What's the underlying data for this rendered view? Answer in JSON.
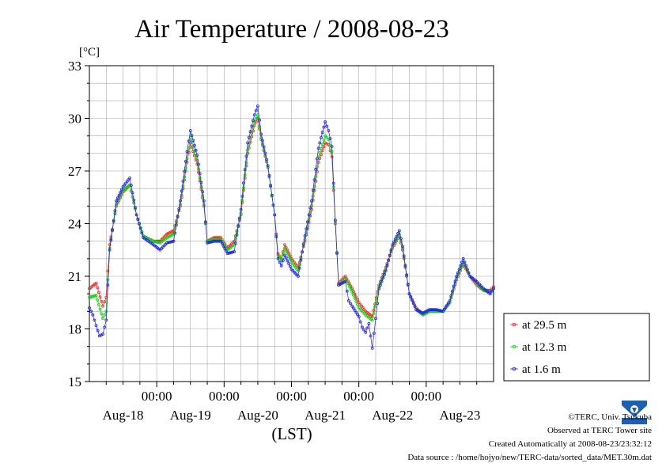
{
  "chart_data": {
    "type": "line",
    "title": "Air Temperature / 2008-08-23",
    "unit_label": "[°C]",
    "xlabel": "(LST)",
    "ylim": [
      15,
      33
    ],
    "yticks": [
      "15",
      "18",
      "21",
      "24",
      "27",
      "30",
      "33"
    ],
    "xlim_days": [
      0,
      6
    ],
    "time_ticks": [
      {
        "day": 1,
        "label": "00:00"
      },
      {
        "day": 2,
        "label": "00:00"
      },
      {
        "day": 3,
        "label": "00:00"
      },
      {
        "day": 4,
        "label": "00:00"
      },
      {
        "day": 5,
        "label": "00:00"
      }
    ],
    "date_labels": [
      {
        "day": 0.5,
        "label": "Aug-18"
      },
      {
        "day": 1.5,
        "label": "Aug-19"
      },
      {
        "day": 2.5,
        "label": "Aug-20"
      },
      {
        "day": 3.5,
        "label": "Aug-21"
      },
      {
        "day": 4.5,
        "label": "Aug-22"
      },
      {
        "day": 5.5,
        "label": "Aug-23"
      }
    ],
    "grid": true,
    "legend_position": "right",
    "series": [
      {
        "name": "at 29.5 m",
        "color": "#ff2020",
        "points": [
          [
            0,
            20.3
          ],
          [
            0.1,
            20.6
          ],
          [
            0.2,
            19.3
          ],
          [
            0.25,
            19.8
          ],
          [
            0.3,
            22.8
          ],
          [
            0.4,
            25.0
          ],
          [
            0.5,
            25.8
          ],
          [
            0.6,
            26.2
          ],
          [
            0.7,
            24.5
          ],
          [
            0.8,
            23.3
          ],
          [
            0.95,
            23.0
          ],
          [
            1.05,
            23.0
          ],
          [
            1.15,
            23.4
          ],
          [
            1.25,
            23.6
          ],
          [
            1.35,
            25.0
          ],
          [
            1.45,
            27.5
          ],
          [
            1.5,
            28.6
          ],
          [
            1.6,
            27.4
          ],
          [
            1.7,
            25.0
          ],
          [
            1.75,
            23.0
          ],
          [
            1.85,
            23.2
          ],
          [
            1.95,
            23.2
          ],
          [
            2.05,
            22.6
          ],
          [
            2.15,
            23.0
          ],
          [
            2.25,
            24.5
          ],
          [
            2.35,
            28.0
          ],
          [
            2.45,
            29.6
          ],
          [
            2.5,
            30.0
          ],
          [
            2.55,
            28.8
          ],
          [
            2.65,
            27.2
          ],
          [
            2.75,
            24.5
          ],
          [
            2.8,
            22.3
          ],
          [
            2.85,
            22.0
          ],
          [
            2.9,
            22.8
          ],
          [
            3.0,
            22.0
          ],
          [
            3.1,
            21.5
          ],
          [
            3.2,
            23.0
          ],
          [
            3.3,
            24.8
          ],
          [
            3.4,
            27.5
          ],
          [
            3.5,
            28.6
          ],
          [
            3.55,
            28.5
          ],
          [
            3.6,
            27.8
          ],
          [
            3.65,
            24.0
          ],
          [
            3.7,
            20.6
          ],
          [
            3.8,
            21.0
          ],
          [
            3.9,
            20.3
          ],
          [
            4.0,
            19.5
          ],
          [
            4.1,
            19.0
          ],
          [
            4.2,
            18.7
          ],
          [
            4.3,
            20.5
          ],
          [
            4.4,
            21.5
          ],
          [
            4.5,
            22.6
          ],
          [
            4.6,
            23.3
          ],
          [
            4.65,
            22.5
          ],
          [
            4.75,
            20.0
          ],
          [
            4.85,
            19.2
          ],
          [
            4.95,
            18.8
          ],
          [
            5.05,
            19.0
          ],
          [
            5.15,
            19.0
          ],
          [
            5.25,
            19.0
          ],
          [
            5.35,
            19.5
          ],
          [
            5.45,
            20.8
          ],
          [
            5.55,
            21.7
          ],
          [
            5.65,
            21.0
          ],
          [
            5.75,
            20.5
          ],
          [
            5.85,
            20.2
          ],
          [
            5.95,
            20.2
          ],
          [
            6.0,
            20.4
          ]
        ]
      },
      {
        "name": "at 12.3 m",
        "color": "#00dd00",
        "points": [
          [
            0,
            19.8
          ],
          [
            0.1,
            19.9
          ],
          [
            0.2,
            18.6
          ],
          [
            0.25,
            19.0
          ],
          [
            0.3,
            22.6
          ],
          [
            0.4,
            25.1
          ],
          [
            0.5,
            25.9
          ],
          [
            0.6,
            26.2
          ],
          [
            0.7,
            24.5
          ],
          [
            0.8,
            23.3
          ],
          [
            0.95,
            23.0
          ],
          [
            1.05,
            22.9
          ],
          [
            1.15,
            23.2
          ],
          [
            1.25,
            23.4
          ],
          [
            1.35,
            25.1
          ],
          [
            1.45,
            27.7
          ],
          [
            1.5,
            28.9
          ],
          [
            1.6,
            27.6
          ],
          [
            1.7,
            25.1
          ],
          [
            1.75,
            23.0
          ],
          [
            1.85,
            23.1
          ],
          [
            1.95,
            23.1
          ],
          [
            2.05,
            22.5
          ],
          [
            2.15,
            22.8
          ],
          [
            2.25,
            24.6
          ],
          [
            2.35,
            28.2
          ],
          [
            2.45,
            29.8
          ],
          [
            2.5,
            30.2
          ],
          [
            2.55,
            28.9
          ],
          [
            2.65,
            27.2
          ],
          [
            2.75,
            24.5
          ],
          [
            2.8,
            22.2
          ],
          [
            2.85,
            21.9
          ],
          [
            2.9,
            22.6
          ],
          [
            3.0,
            21.8
          ],
          [
            3.1,
            21.3
          ],
          [
            3.2,
            23.1
          ],
          [
            3.3,
            25.0
          ],
          [
            3.4,
            27.8
          ],
          [
            3.5,
            29.0
          ],
          [
            3.55,
            28.8
          ],
          [
            3.6,
            28.1
          ],
          [
            3.65,
            24.1
          ],
          [
            3.7,
            20.5
          ],
          [
            3.8,
            20.9
          ],
          [
            3.9,
            20.1
          ],
          [
            4.0,
            19.2
          ],
          [
            4.1,
            18.8
          ],
          [
            4.2,
            18.5
          ],
          [
            4.3,
            20.4
          ],
          [
            4.4,
            21.4
          ],
          [
            4.5,
            22.7
          ],
          [
            4.6,
            23.4
          ],
          [
            4.65,
            22.6
          ],
          [
            4.75,
            20.0
          ],
          [
            4.85,
            19.1
          ],
          [
            4.95,
            18.8
          ],
          [
            5.05,
            19.0
          ],
          [
            5.15,
            19.0
          ],
          [
            5.25,
            19.0
          ],
          [
            5.35,
            19.5
          ],
          [
            5.45,
            20.9
          ],
          [
            5.55,
            21.8
          ],
          [
            5.65,
            21.0
          ],
          [
            5.75,
            20.6
          ],
          [
            5.85,
            20.2
          ],
          [
            5.95,
            20.1
          ],
          [
            6.0,
            20.3
          ]
        ]
      },
      {
        "name": "at 1.6 m",
        "color": "#2020ff",
        "points": [
          [
            0,
            19.2
          ],
          [
            0.05,
            18.8
          ],
          [
            0.1,
            18.2
          ],
          [
            0.15,
            17.6
          ],
          [
            0.2,
            17.7
          ],
          [
            0.25,
            18.5
          ],
          [
            0.3,
            22.5
          ],
          [
            0.4,
            25.3
          ],
          [
            0.5,
            26.1
          ],
          [
            0.6,
            26.6
          ],
          [
            0.7,
            24.5
          ],
          [
            0.8,
            23.2
          ],
          [
            0.95,
            22.8
          ],
          [
            1.05,
            22.5
          ],
          [
            1.15,
            22.9
          ],
          [
            1.25,
            23.0
          ],
          [
            1.35,
            25.3
          ],
          [
            1.45,
            28.1
          ],
          [
            1.5,
            29.3
          ],
          [
            1.6,
            27.9
          ],
          [
            1.7,
            25.3
          ],
          [
            1.75,
            22.9
          ],
          [
            1.85,
            23.0
          ],
          [
            1.95,
            23.0
          ],
          [
            2.05,
            22.3
          ],
          [
            2.15,
            22.4
          ],
          [
            2.25,
            24.8
          ],
          [
            2.35,
            28.6
          ],
          [
            2.45,
            30.2
          ],
          [
            2.5,
            30.7
          ],
          [
            2.55,
            29.1
          ],
          [
            2.65,
            27.3
          ],
          [
            2.75,
            24.5
          ],
          [
            2.8,
            22.0
          ],
          [
            2.85,
            21.6
          ],
          [
            2.9,
            22.2
          ],
          [
            3.0,
            21.4
          ],
          [
            3.1,
            21.0
          ],
          [
            3.2,
            23.3
          ],
          [
            3.3,
            25.3
          ],
          [
            3.4,
            28.3
          ],
          [
            3.5,
            29.8
          ],
          [
            3.55,
            29.3
          ],
          [
            3.6,
            28.4
          ],
          [
            3.65,
            24.2
          ],
          [
            3.7,
            20.5
          ],
          [
            3.8,
            20.7
          ],
          [
            3.85,
            19.6
          ],
          [
            3.9,
            19.3
          ],
          [
            4.0,
            18.7
          ],
          [
            4.05,
            18.1
          ],
          [
            4.1,
            17.8
          ],
          [
            4.15,
            18.3
          ],
          [
            4.2,
            16.9
          ],
          [
            4.25,
            18.6
          ],
          [
            4.3,
            20.3
          ],
          [
            4.4,
            21.3
          ],
          [
            4.5,
            22.8
          ],
          [
            4.6,
            23.6
          ],
          [
            4.65,
            22.7
          ],
          [
            4.75,
            20.0
          ],
          [
            4.85,
            19.1
          ],
          [
            4.95,
            18.9
          ],
          [
            5.05,
            19.1
          ],
          [
            5.15,
            19.1
          ],
          [
            5.25,
            19.0
          ],
          [
            5.35,
            19.6
          ],
          [
            5.45,
            21.0
          ],
          [
            5.55,
            22.0
          ],
          [
            5.65,
            21.0
          ],
          [
            5.75,
            20.7
          ],
          [
            5.85,
            20.3
          ],
          [
            5.95,
            20.0
          ],
          [
            6.0,
            20.3
          ]
        ]
      }
    ]
  },
  "credits": {
    "copyright": "©TERC, Univ. Tsukuba",
    "observed": "Observed at TERC Tower site",
    "created": "Created Automatically at 2008-08-23/23:32:12",
    "source": "Data source : /home/hojyo/new/TERC-data/sorted_data/MET.30m.dat",
    "logo_text": "TERC"
  }
}
